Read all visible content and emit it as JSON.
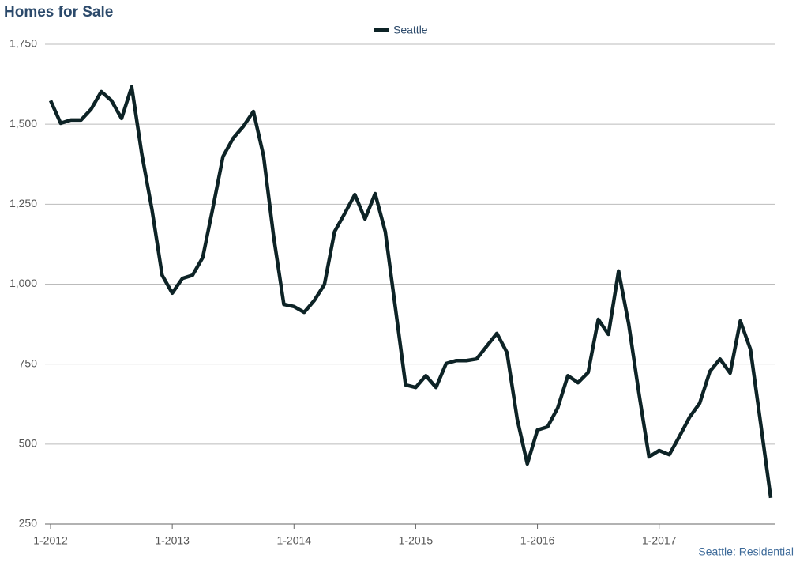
{
  "chart_data": {
    "type": "line",
    "title": "Homes for Sale",
    "footer": "Seattle: Residential",
    "categories": [
      "1-2012",
      null,
      null,
      null,
      null,
      null,
      null,
      null,
      null,
      null,
      null,
      null,
      "1-2013",
      null,
      null,
      null,
      null,
      null,
      null,
      null,
      null,
      null,
      null,
      null,
      "1-2014",
      null,
      null,
      null,
      null,
      null,
      null,
      null,
      null,
      null,
      null,
      null,
      "1-2015",
      null,
      null,
      null,
      null,
      null,
      null,
      null,
      null,
      null,
      null,
      null,
      "1-2016",
      null,
      null,
      null,
      null,
      null,
      null,
      null,
      null,
      null,
      null,
      null,
      "1-2017",
      null,
      null,
      null,
      null,
      null,
      null,
      null,
      null,
      null,
      null,
      null
    ],
    "series": [
      {
        "name": "Seattle",
        "color": "#0d2326",
        "values": [
          1574,
          1503,
          1513,
          1513,
          1547,
          1602,
          1574,
          1518,
          1617,
          1406,
          1233,
          1028,
          972,
          1018,
          1028,
          1083,
          1238,
          1399,
          1456,
          1493,
          1540,
          1401,
          1147,
          937,
          930,
          912,
          949,
          999,
          1164,
          1221,
          1280,
          1204,
          1283,
          1164,
          925,
          685,
          677,
          714,
          677,
          752,
          761,
          761,
          766,
          806,
          846,
          786,
          579,
          438,
          544,
          554,
          613,
          714,
          692,
          724,
          890,
          843,
          1041,
          875,
          660,
          460,
          480,
          467,
          524,
          584,
          628,
          727,
          766,
          722,
          885,
          796,
          566,
          332
        ]
      }
    ],
    "ylim": [
      250,
      1750
    ],
    "yticks": [
      250,
      500,
      750,
      {
        "value": 1000,
        "label": "1,000"
      },
      {
        "value": 1250,
        "label": "1,250"
      },
      {
        "value": 1500,
        "label": "1,500"
      },
      {
        "value": 1750,
        "label": "1,750"
      }
    ],
    "grid": true,
    "legend": "top"
  }
}
